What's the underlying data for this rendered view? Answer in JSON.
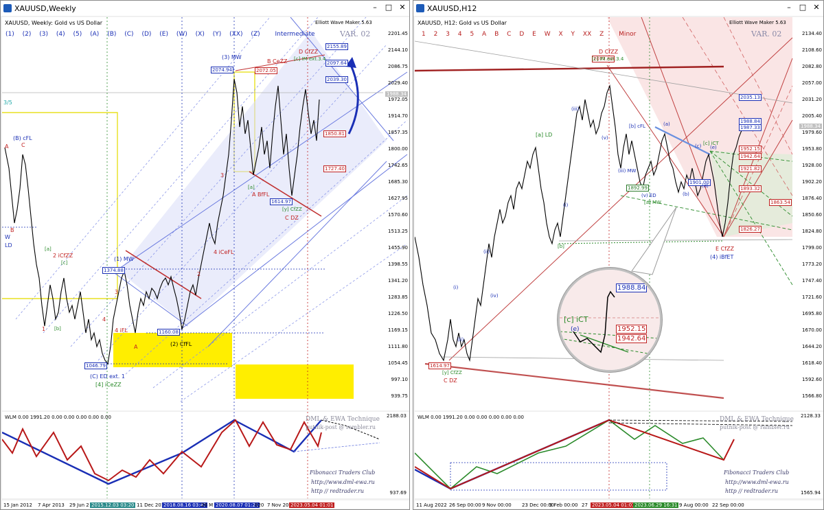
{
  "left_window": {
    "title": "XAUUSD,Weekly",
    "symbol": "XAUUSD, Weekly:  Gold vs US Dollar",
    "indicator": "Elliott Wave Maker 5.63",
    "degree_bar": [
      "(1)",
      "(2)",
      "(3)",
      "(4)",
      "(5)",
      "(A)",
      "(B)",
      "(C)",
      "(D)",
      "(E)",
      "(W)",
      "(X)",
      "(Y)",
      "(XX)",
      "(Z)"
    ],
    "degree_name": "Intermediate",
    "var_label": "VAR. 02",
    "price_scale": [
      "2201.45",
      "2144.10",
      "2086.75",
      "2029.40",
      "1972.05",
      "1914.70",
      "1857.35",
      "1800.00",
      "1742.65",
      "1685.30",
      "1627.95",
      "1570.60",
      "1513.25",
      "1455.90",
      "1398.55",
      "1341.20",
      "1283.85",
      "1226.50",
      "1169.15",
      "1111.80",
      "1054.45",
      "997.10",
      "939.75"
    ],
    "current_price": "1988.34",
    "price_boxes": {
      "b2155": "2155.89",
      "b2097": "2097.64",
      "b2074": "2074.94",
      "b2072": "2072.05",
      "b2039": "2039.30",
      "b1850": "1850.81",
      "b1727": "1727.40",
      "b1614": "1614.97",
      "b1374": "1374.88",
      "b1160": "1160.08",
      "b1046": "1046.79"
    },
    "wave_labels": {
      "ml1": "(3) MW",
      "ml2": "D CfZZ",
      "ml3": "[c] IM ext.3.4",
      "ml4": "B CeZZ",
      "ml5": "(B) cFL",
      "ml6": "2 iCfZZ",
      "ml7": "(1) MW",
      "ml8": "(2) CfFL",
      "ml9": "4 iFL",
      "ml10": "4 iCeFL",
      "ml11": "A BfFL",
      "ml12": "C DZ",
      "ml13": "[y] CfZZ",
      "ml14": "(C) ED ext. 1",
      "ml15": "[4] iCeZZ",
      "ml16": "A",
      "ml17": "C",
      "ml18": "B",
      "ml19": "W",
      "ml20": "LD",
      "ml21": "1",
      "ml22": "[b]",
      "ml23": "[a]",
      "ml24": "[c]",
      "ml25": "3",
      "ml26": "A",
      "ml27": "3",
      "ml28": "4",
      "ml29": "2",
      "ml30": "[a]",
      "ml31": "3/5"
    },
    "wlm_text": "WLM 0.00 1991.20 0.00 0.00 0.00 0.00 0.00",
    "wlm_scale": [
      "2188.03",
      "937.69"
    ],
    "credit_big": "DML & EWA Technique",
    "credit_mail": "putnik-post @ rambler.ru",
    "credit_club": "Fibonacci    Traders    Club",
    "credit_url1": "http://www.dml-ewa.ru",
    "credit_url2": "http  //  redtrader.ru",
    "time_axis": [
      "15 Jan 2012",
      "7 Apr 2013",
      "29 Jun 2",
      "11 Dec 201",
      "26 M",
      "020",
      "7 Nov 20"
    ],
    "time_tags": {
      "t1": "2015.12.03 03:20",
      "t2": "2018.08.16 03:47",
      "t3": "2020.08.07 01:21",
      "t4": "2023.05.04 01:01"
    }
  },
  "right_window": {
    "title": "XAUUSD,H12",
    "symbol": "XAUUSD, H12:  Gold vs US Dollar",
    "indicator": "Elliott Wave Maker 5.63",
    "degree_bar": [
      "1",
      "2",
      "3",
      "4",
      "5",
      "A",
      "B",
      "C",
      "D",
      "E",
      "W",
      "X",
      "Y",
      "XX",
      "Z"
    ],
    "degree_name": "Minor",
    "var_label": "VAR. 02",
    "price_scale": [
      "2134.40",
      "2108.60",
      "2082.80",
      "2057.00",
      "2031.20",
      "2005.40",
      "1979.60",
      "1953.80",
      "1928.00",
      "1902.20",
      "1876.40",
      "1850.60",
      "1824.80",
      "1799.00",
      "1773.20",
      "1747.40",
      "1721.60",
      "1695.80",
      "1670.00",
      "1644.20",
      "1618.40",
      "1592.60",
      "1566.80"
    ],
    "current_price": "1988.34",
    "price_boxes": {
      "r2035": "2035.13",
      "r1988": "1988.84",
      "r1987": "1987.33",
      "r1952": "1952.15",
      "r1942": "1942.64",
      "r1921": "1921.82",
      "r1893": "1893.32",
      "r1863": "1863.54",
      "r1826": "1826.27",
      "r1892": "1892.99",
      "r1901": "1901.00",
      "r1614": "1614.97",
      "r2077": "2077.30"
    },
    "wave_labels": {
      "rl1": "D CfZZ",
      "rl2": "[c] IM ext.3.4",
      "rl3": "[a] LD",
      "rl4": "(iii)",
      "rl5": "(iv)",
      "rl6": "(ii)",
      "rl7": "(i)",
      "rl8": "(iii) MW",
      "rl9": "(v) ED",
      "rl10": "[a] MW",
      "rl11": "[b] cFL",
      "rl12": "[c] iCT",
      "rl13": "E CfZZ",
      "rl14": "(4) iBfET",
      "rl15": "C DZ",
      "rl16": "[y] CfZZ",
      "rl17": "(b)",
      "rl18": "(d)",
      "rl19": "(e)",
      "rl20": "(a)",
      "rl21": "(c)",
      "rl22": "(v)",
      "rl23": "[b]",
      "rl24": "(i)",
      "rl25": "(ii)"
    },
    "lens_boxes": {
      "l1": "1988.84",
      "l2": "1952.15",
      "l3": "1942.64",
      "l4": "[c] iCT",
      "l5": "(e)"
    },
    "wlm_text": "WLM 0.00 1991.20 0.00 0.00 0.00 0.00 0.00",
    "wlm_scale": [
      "2128.33",
      "1565.94"
    ],
    "credit_big": "DML & EWA Technique",
    "credit_mail": "putnik-post @ rambler.ru",
    "credit_club": "Fibonacci    Traders    Club",
    "credit_url1": "http://www.dml-ewa.ru",
    "credit_url2": "http  //  redtrader.ru",
    "time_axis": [
      "11 Aug 2022",
      "26 Sep 00:00",
      "9 Nov 00:00",
      "23 Dec 00:00",
      "9 Feb 00:00",
      "27",
      "9 Aug 00:00",
      "22 Sep 00:00"
    ],
    "time_tags": {
      "t1": "2023.05.04 01:01",
      "t2": "2023.06.29 16:31"
    }
  },
  "colors": {
    "wave_blue": "#1a2fb5",
    "wave_red": "#c02020",
    "wave_green": "#2a8a2a",
    "channel_blue": "#6a7adf",
    "highlight_yellow": "#ffee00"
  },
  "icons": [
    "window-app-icon",
    "minimize-icon",
    "maximize-icon",
    "close-icon"
  ]
}
